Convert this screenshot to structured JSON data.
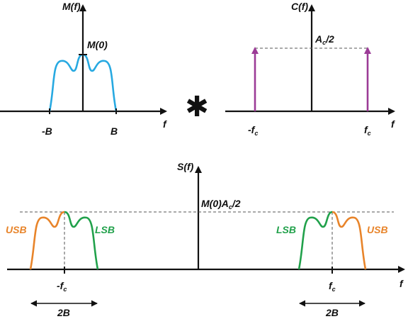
{
  "colors": {
    "axis": "#111111",
    "message": "#27a9e1",
    "carrier": "#9b3b96",
    "usb": "#e8842a",
    "lsb": "#21a14b",
    "dashed": "#555555"
  },
  "message_panel": {
    "ylabel": "M(f)",
    "peak_label": "M(0)",
    "tick_neg": "-B",
    "tick_pos": "B",
    "xlabel": "f"
  },
  "operator": "✱",
  "carrier_panel": {
    "ylabel": "C(f)",
    "amp_main": "A",
    "amp_sub": "c",
    "amp_tail": "/2",
    "tick_neg_main": "-f",
    "tick_neg_sub": "c",
    "tick_pos_main": "f",
    "tick_pos_sub": "c",
    "xlabel": "f"
  },
  "spectrum_panel": {
    "ylabel": "S(f)",
    "level_main": "M(0)A",
    "level_sub": "c",
    "level_tail": "/2",
    "usb_left": "USB",
    "lsb_left": "LSB",
    "lsb_right": "LSB",
    "usb_right": "USB",
    "tick_neg_main": "-f",
    "tick_neg_sub": "c",
    "tick_pos_main": "f",
    "tick_pos_sub": "c",
    "xlabel": "f",
    "width_left": "2B",
    "width_right": "2B"
  }
}
